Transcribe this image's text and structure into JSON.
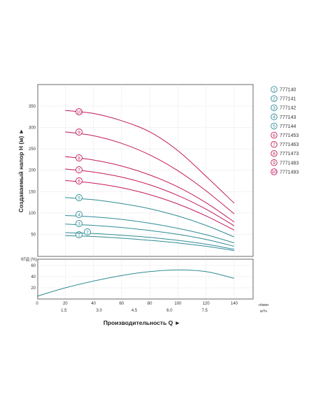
{
  "chart_data": [
    {
      "type": "line",
      "ylabel": "Создаваемый напор H (м) ►",
      "yticks": [
        50,
        100,
        150,
        200,
        250,
        300,
        350
      ],
      "ylim": [
        0,
        360
      ],
      "xlim": [
        0,
        140
      ],
      "grid": true,
      "series": [
        {
          "id": "1",
          "name": "777140",
          "color": "#2e8b96",
          "points": [
            [
              20,
              47
            ],
            [
              40,
              45
            ],
            [
              60,
              41
            ],
            [
              80,
              36
            ],
            [
              100,
              30
            ],
            [
              120,
              22
            ],
            [
              140,
              12
            ]
          ]
        },
        {
          "id": "2",
          "name": "777141",
          "color": "#2e8b96",
          "points": [
            [
              20,
              54
            ],
            [
              40,
              52
            ],
            [
              60,
              48
            ],
            [
              80,
              43
            ],
            [
              100,
              36
            ],
            [
              120,
              27
            ],
            [
              140,
              15
            ]
          ]
        },
        {
          "id": "3",
          "name": "777142",
          "color": "#2e8b96",
          "points": [
            [
              20,
              74
            ],
            [
              40,
              71
            ],
            [
              60,
              66
            ],
            [
              80,
              59
            ],
            [
              100,
              50
            ],
            [
              120,
              38
            ],
            [
              140,
              22
            ]
          ]
        },
        {
          "id": "4",
          "name": "777143",
          "color": "#2e8b96",
          "points": [
            [
              20,
              94
            ],
            [
              40,
              91
            ],
            [
              60,
              85
            ],
            [
              80,
              76
            ],
            [
              100,
              64
            ],
            [
              120,
              49
            ],
            [
              140,
              30
            ]
          ]
        },
        {
          "id": "5",
          "name": "777144",
          "color": "#2e8b96",
          "points": [
            [
              20,
              136
            ],
            [
              40,
              131
            ],
            [
              60,
              122
            ],
            [
              80,
              110
            ],
            [
              100,
              93
            ],
            [
              120,
              71
            ],
            [
              140,
              44
            ]
          ]
        },
        {
          "id": "6",
          "name": "7771453",
          "color": "#c2185b",
          "points": [
            [
              20,
              176
            ],
            [
              40,
              170
            ],
            [
              60,
              159
            ],
            [
              80,
              143
            ],
            [
              100,
              121
            ],
            [
              120,
              93
            ],
            [
              140,
              60
            ]
          ]
        },
        {
          "id": "7",
          "name": "7771463",
          "color": "#c2185b",
          "points": [
            [
              20,
              203
            ],
            [
              40,
              196
            ],
            [
              60,
              184
            ],
            [
              80,
              166
            ],
            [
              100,
              141
            ],
            [
              120,
              109
            ],
            [
              140,
              70
            ]
          ]
        },
        {
          "id": "8",
          "name": "7771473",
          "color": "#c2185b",
          "points": [
            [
              20,
              232
            ],
            [
              40,
              224
            ],
            [
              60,
              210
            ],
            [
              80,
              189
            ],
            [
              100,
              161
            ],
            [
              120,
              124
            ],
            [
              140,
              79
            ]
          ]
        },
        {
          "id": "9",
          "name": "7771483",
          "color": "#c2185b",
          "points": [
            [
              20,
              290
            ],
            [
              40,
              281
            ],
            [
              60,
              263
            ],
            [
              80,
              236
            ],
            [
              100,
              199
            ],
            [
              120,
              152
            ],
            [
              140,
              98
            ]
          ]
        },
        {
          "id": "10",
          "name": "7771493",
          "color": "#c2185b",
          "points": [
            [
              20,
              340
            ],
            [
              40,
              333
            ],
            [
              60,
              316
            ],
            [
              80,
              290
            ],
            [
              100,
              246
            ],
            [
              120,
              186
            ],
            [
              140,
              123
            ]
          ]
        }
      ]
    },
    {
      "type": "line",
      "ylabel": "КПД (%)",
      "yticks": [
        20,
        40,
        60
      ],
      "ylim": [
        0,
        70
      ],
      "xlim": [
        0,
        140
      ],
      "xticks": [
        0,
        20,
        40,
        60,
        80,
        100,
        120,
        140
      ],
      "xticks_secondary": [
        "1.5",
        "3.0",
        "4.5",
        "6.0",
        "7.5"
      ],
      "x_unit": "л/мин",
      "x_unit_secondary": "м³/ч",
      "xlabel": "Производительность Q ►",
      "grid": true,
      "series": [
        {
          "name": "",
          "color": "#2e8b96",
          "points": [
            [
              0,
              5
            ],
            [
              20,
              20
            ],
            [
              40,
              32
            ],
            [
              60,
              42
            ],
            [
              80,
              49
            ],
            [
              100,
              52
            ],
            [
              120,
              49
            ],
            [
              140,
              37
            ]
          ]
        }
      ]
    }
  ]
}
